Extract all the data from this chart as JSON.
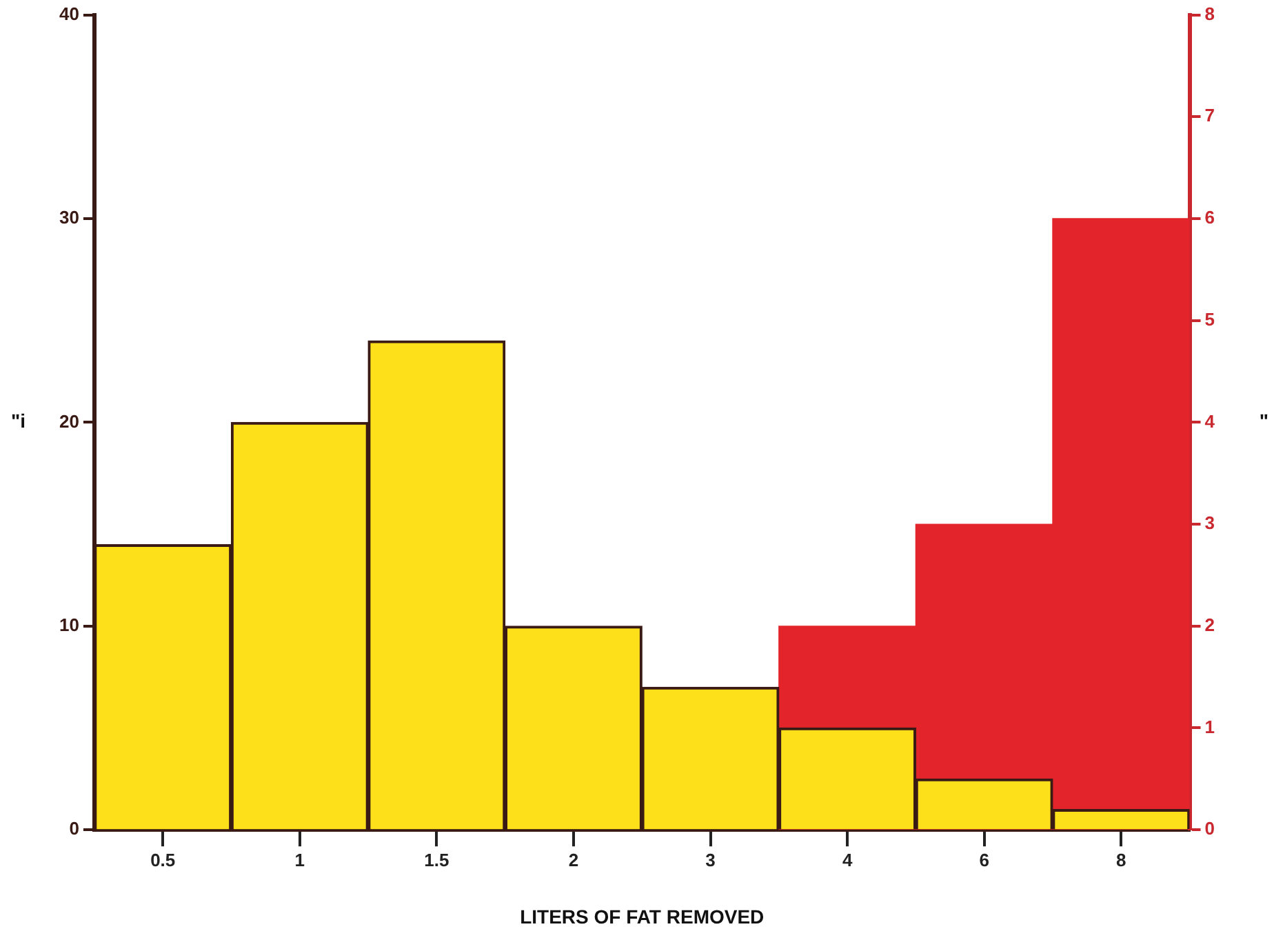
{
  "chart_data": {
    "type": "bar",
    "xlabel": "LITERS OF FAT REMOVED",
    "ylabel": "\"i",
    "y2label": "\"",
    "categories": [
      "0.5",
      "1",
      "1.5",
      "2",
      "3",
      "4",
      "6",
      "8"
    ],
    "series": [
      {
        "color": "#fde01a",
        "values": [
          14,
          20,
          24,
          10,
          7,
          5,
          2.5,
          1
        ]
      },
      {
        "color": "#e3242b",
        "axis": "y2",
        "values": [
          null,
          null,
          null,
          null,
          null,
          2,
          3,
          6
        ]
      }
    ],
    "ylim": [
      0,
      40
    ],
    "yticks": [
      0,
      10,
      20,
      30,
      40
    ],
    "y2lim": [
      0,
      8
    ],
    "y2ticks": [
      0,
      1,
      2,
      3,
      4,
      5,
      6,
      7,
      8
    ],
    "grid": false,
    "legend": false
  }
}
